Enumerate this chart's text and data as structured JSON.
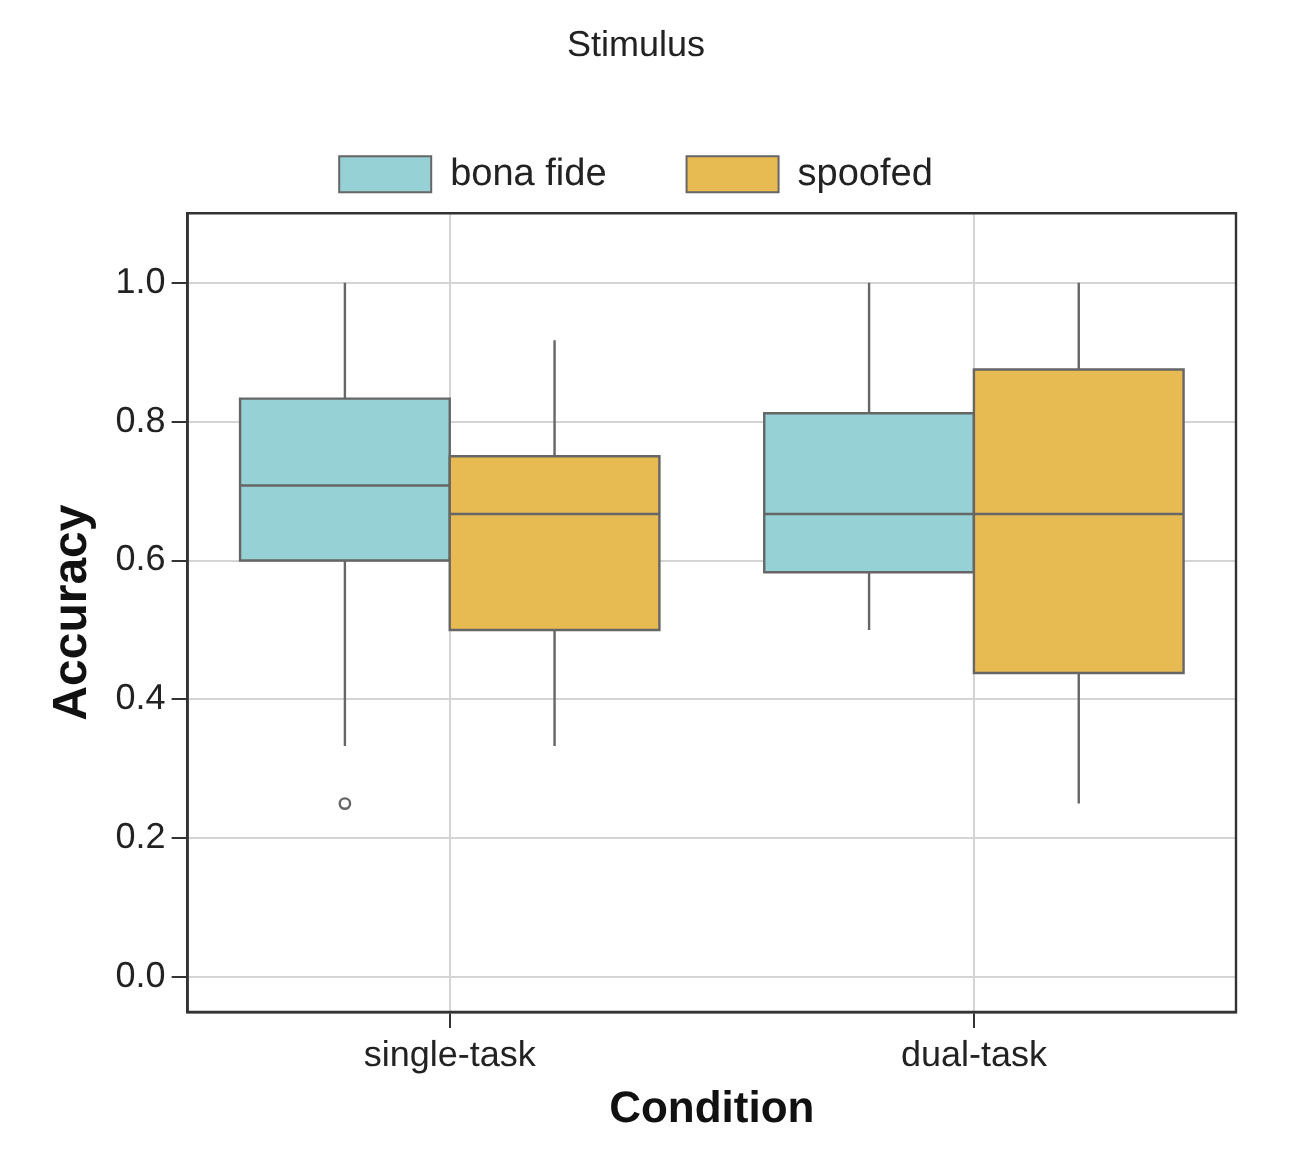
{
  "chart_data": {
    "type": "box",
    "xlabel": "Condition",
    "ylabel": "Accuracy",
    "legend_title": "Stimulus",
    "legend": "top",
    "grid": true,
    "categories": [
      "single-task",
      "dual-task"
    ],
    "ylim": [
      -0.05,
      1.1
    ],
    "yticks": [
      {
        "value": 0,
        "label": "0.0"
      },
      0.2,
      0.4,
      0.6,
      0.8,
      {
        "value": 1,
        "label": "1.0"
      }
    ],
    "series": [
      {
        "name": "bona fide",
        "color": "#96d1d6",
        "boxes": [
          {
            "low": 0.333,
            "q1": 0.6,
            "median": 0.708,
            "q3": 0.833,
            "high": 1.0,
            "outliers": [
              0.25
            ]
          },
          {
            "low": 0.5,
            "q1": 0.583,
            "median": 0.667,
            "q3": 0.812,
            "high": 1.0
          }
        ]
      },
      {
        "name": "spoofed",
        "color": "#e8bb52",
        "boxes": [
          {
            "low": 0.333,
            "q1": 0.5,
            "median": 0.667,
            "q3": 0.75,
            "high": 0.917
          },
          {
            "low": 0.25,
            "q1": 0.438,
            "median": 0.667,
            "q3": 0.875,
            "high": 1.0
          }
        ]
      }
    ]
  }
}
